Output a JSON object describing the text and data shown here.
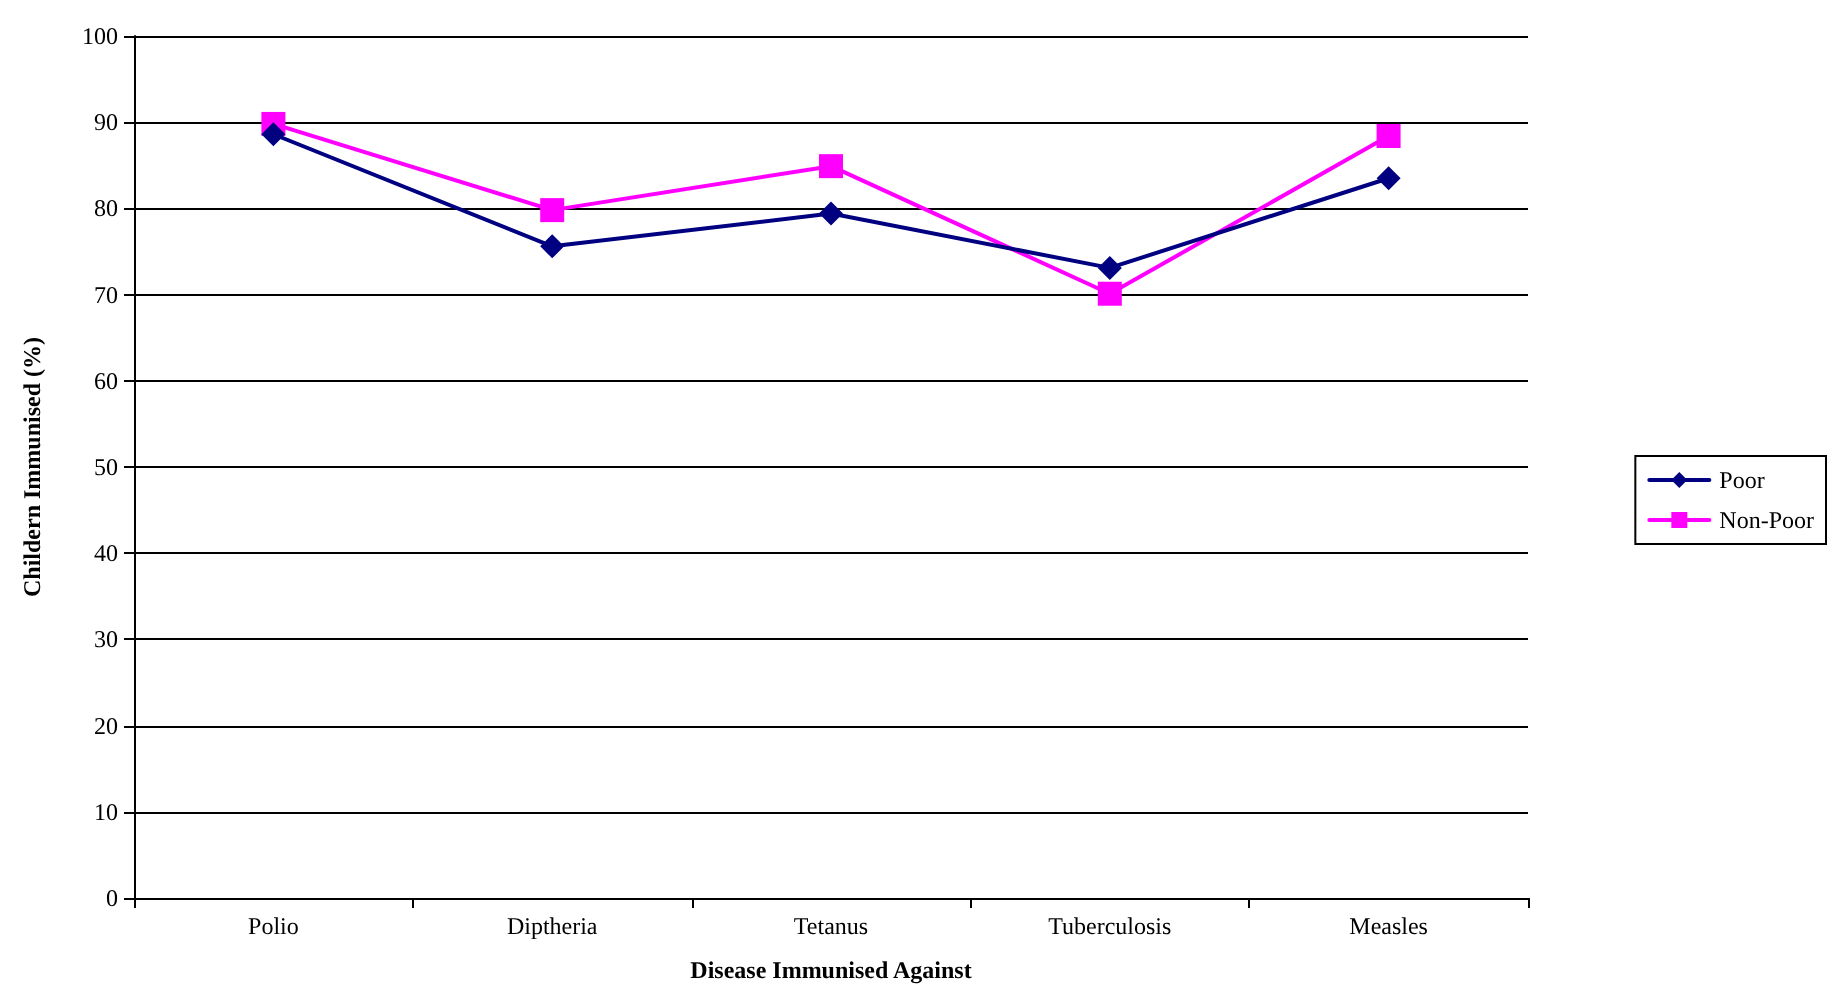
{
  "chart_data": {
    "type": "line",
    "xlabel": "Disease Immunised Against",
    "ylabel": "Childern Immunised (%)",
    "categories": [
      "Polio",
      "Diptheria",
      "Tetanus",
      "Tuberculosis",
      "Measles"
    ],
    "series": [
      {
        "name": "Poor",
        "color": "#000080",
        "marker": "diamond",
        "values": [
          88.6,
          75.6,
          79.4,
          73.1,
          83.5
        ]
      },
      {
        "name": "Non-Poor",
        "color": "#ff00ff",
        "marker": "square",
        "values": [
          89.8,
          79.8,
          84.9,
          70.1,
          88.4
        ]
      }
    ],
    "ylim": [
      0,
      100
    ],
    "yticks": [
      0,
      10,
      20,
      30,
      40,
      50,
      60,
      70,
      80,
      90,
      100
    ],
    "grid": "y",
    "legend": "right",
    "line_style": "solid"
  }
}
